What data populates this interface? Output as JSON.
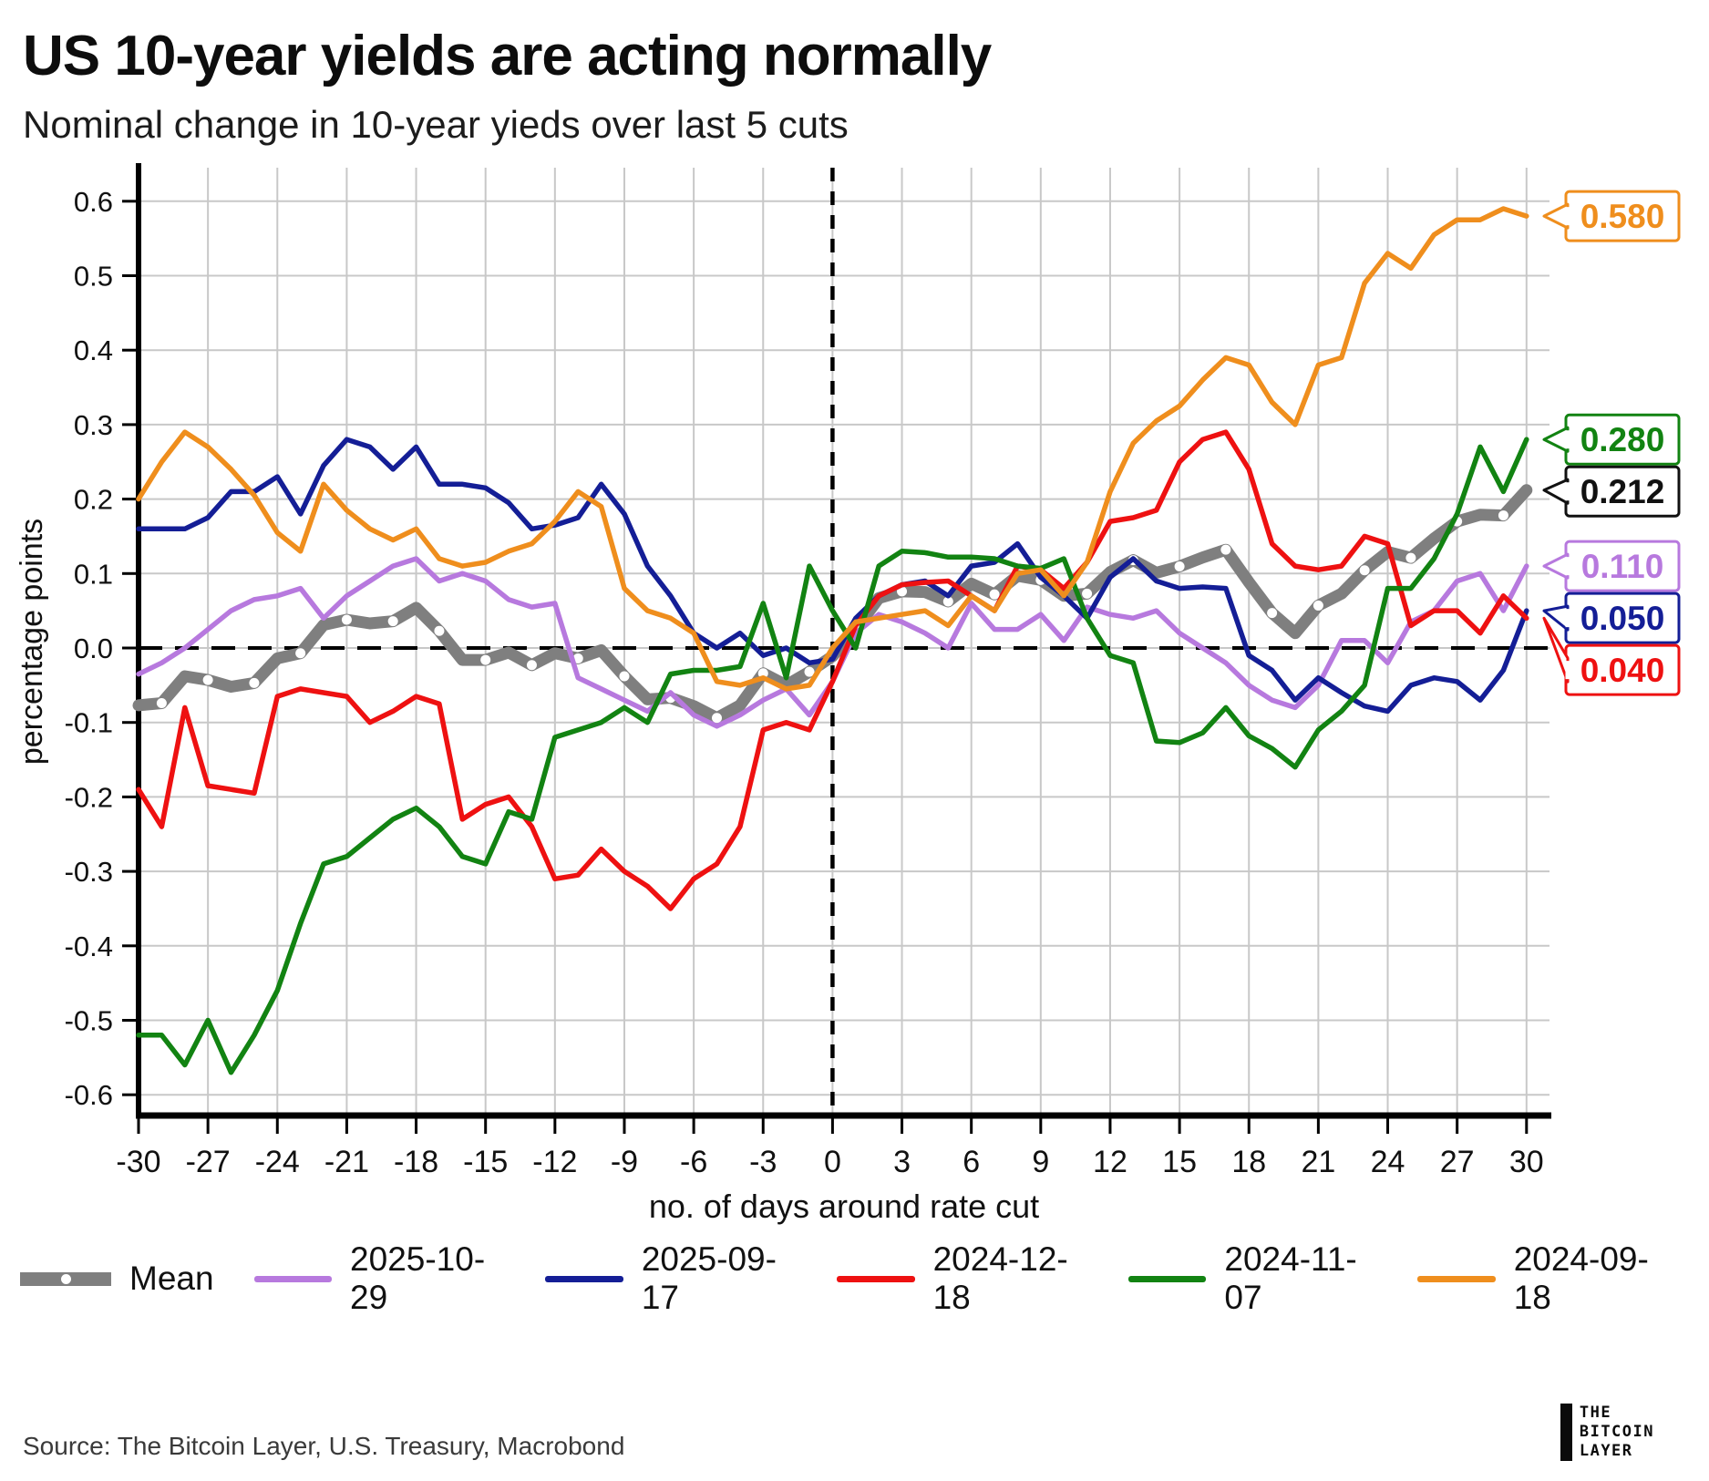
{
  "header": {
    "title": "US 10-year yields are acting normally",
    "subtitle": "Nominal change in 10-year yieds over last 5 cuts"
  },
  "chart_data": {
    "type": "line",
    "xlabel": "no. of days around rate cut",
    "ylabel": "percentage points",
    "x_range": [
      -30,
      30
    ],
    "xticks": [
      -30,
      -27,
      -24,
      -21,
      -18,
      -15,
      -12,
      -9,
      -6,
      -3,
      0,
      3,
      6,
      9,
      12,
      15,
      18,
      21,
      24,
      27,
      30
    ],
    "yticks": [
      0.6,
      0.5,
      0.4,
      0.3,
      0.2,
      0.1,
      0.0,
      -0.1,
      -0.2,
      -0.3,
      -0.4,
      -0.5,
      -0.6
    ],
    "ytick_labels": [
      "0.6",
      "0.5",
      "0.4",
      "0.3",
      "0.2",
      "0.1",
      "0.0",
      "-0.1",
      "-0.2",
      "-0.3",
      "-0.4",
      "-0.5",
      "-0.6"
    ],
    "ylim": [
      -0.66,
      0.645
    ],
    "grid": true,
    "zero_lines": "dashed horizontal at 0.0 and dashed vertical at day 0",
    "legend_position": "bottom",
    "grid_color": "#c8c8c8",
    "axis_color": "#000000",
    "mean_series": {
      "name": "Mean",
      "color": "#7f7f7f",
      "style": "thick-gray-with-white-dots",
      "derived": "average of the 5 dated series at each day",
      "end_label": "0.212",
      "end_label_color": "#111111"
    },
    "series": [
      {
        "name": "2025-10-29",
        "color": "#b779de",
        "end_label": "0.110",
        "values": [
          -0.035,
          -0.02,
          0.0,
          0.025,
          0.05,
          0.065,
          0.07,
          0.08,
          0.04,
          0.07,
          0.09,
          0.11,
          0.12,
          0.09,
          0.1,
          0.09,
          0.065,
          0.055,
          0.06,
          -0.04,
          -0.055,
          -0.07,
          -0.085,
          -0.06,
          -0.09,
          -0.105,
          -0.09,
          -0.07,
          -0.055,
          -0.09,
          -0.045,
          0.02,
          0.045,
          0.035,
          0.02,
          0.0,
          0.06,
          0.025,
          0.025,
          0.045,
          0.01,
          0.055,
          0.045,
          0.04,
          0.05,
          0.02,
          0.0,
          -0.02,
          -0.05,
          -0.07,
          -0.08,
          -0.05,
          0.01,
          0.01,
          -0.02,
          0.035,
          0.05,
          0.09,
          0.1,
          0.05,
          0.11
        ]
      },
      {
        "name": "2025-09-17",
        "color": "#141e96",
        "end_label": "0.050",
        "values": [
          0.16,
          0.16,
          0.16,
          0.175,
          0.21,
          0.21,
          0.23,
          0.18,
          0.245,
          0.28,
          0.27,
          0.24,
          0.27,
          0.22,
          0.22,
          0.215,
          0.195,
          0.16,
          0.165,
          0.175,
          0.22,
          0.18,
          0.11,
          0.07,
          0.02,
          0.0,
          0.02,
          -0.01,
          0.0,
          -0.02,
          -0.015,
          0.04,
          0.07,
          0.085,
          0.09,
          0.07,
          0.11,
          0.115,
          0.14,
          0.095,
          0.07,
          0.04,
          0.095,
          0.12,
          0.09,
          0.08,
          0.082,
          0.08,
          -0.01,
          -0.03,
          -0.07,
          -0.04,
          -0.06,
          -0.078,
          -0.085,
          -0.05,
          -0.04,
          -0.045,
          -0.07,
          -0.03,
          0.05
        ]
      },
      {
        "name": "2024-12-18",
        "color": "#ee1111",
        "end_label": "0.040",
        "values": [
          -0.19,
          -0.24,
          -0.08,
          -0.185,
          -0.19,
          -0.195,
          -0.065,
          -0.055,
          -0.06,
          -0.065,
          -0.1,
          -0.085,
          -0.065,
          -0.075,
          -0.23,
          -0.21,
          -0.2,
          -0.24,
          -0.31,
          -0.305,
          -0.27,
          -0.3,
          -0.32,
          -0.35,
          -0.31,
          -0.29,
          -0.24,
          -0.11,
          -0.1,
          -0.11,
          -0.045,
          0.03,
          0.07,
          0.085,
          0.088,
          0.09,
          0.07,
          0.05,
          0.11,
          0.105,
          0.08,
          0.115,
          0.17,
          0.175,
          0.185,
          0.25,
          0.28,
          0.29,
          0.24,
          0.14,
          0.11,
          0.105,
          0.11,
          0.15,
          0.14,
          0.03,
          0.05,
          0.05,
          0.02,
          0.07,
          0.04
        ]
      },
      {
        "name": "2024-11-07",
        "color": "#128312",
        "end_label": "0.280",
        "values": [
          -0.52,
          -0.52,
          -0.56,
          -0.5,
          -0.57,
          -0.52,
          -0.46,
          -0.37,
          -0.29,
          -0.28,
          -0.255,
          -0.23,
          -0.215,
          -0.24,
          -0.28,
          -0.29,
          -0.22,
          -0.23,
          -0.12,
          -0.11,
          -0.1,
          -0.08,
          -0.1,
          -0.035,
          -0.03,
          -0.03,
          -0.025,
          0.06,
          -0.04,
          0.11,
          0.05,
          0.0,
          0.11,
          0.13,
          0.128,
          0.122,
          0.122,
          0.12,
          0.11,
          0.107,
          0.12,
          0.04,
          -0.01,
          -0.02,
          -0.125,
          -0.127,
          -0.114,
          -0.08,
          -0.118,
          -0.135,
          -0.16,
          -0.11,
          -0.085,
          -0.05,
          0.08,
          0.08,
          0.12,
          0.18,
          0.27,
          0.21,
          0.28
        ]
      },
      {
        "name": "2024-09-18",
        "color": "#ef8e1d",
        "end_label": "0.580",
        "values": [
          0.2,
          0.25,
          0.29,
          0.27,
          0.24,
          0.205,
          0.155,
          0.13,
          0.22,
          0.185,
          0.16,
          0.145,
          0.16,
          0.12,
          0.11,
          0.115,
          0.13,
          0.14,
          0.17,
          0.21,
          0.19,
          0.08,
          0.05,
          0.04,
          0.02,
          -0.045,
          -0.05,
          -0.04,
          -0.055,
          -0.05,
          0.0,
          0.035,
          0.04,
          0.045,
          0.05,
          0.03,
          0.07,
          0.05,
          0.1,
          0.105,
          0.07,
          0.115,
          0.21,
          0.275,
          0.305,
          0.325,
          0.36,
          0.39,
          0.38,
          0.33,
          0.3,
          0.38,
          0.39,
          0.49,
          0.53,
          0.51,
          0.555,
          0.575,
          0.575,
          0.59,
          0.58
        ]
      }
    ],
    "legend": [
      "Mean",
      "2025-10-29",
      "2025-09-17",
      "2024-12-18",
      "2024-11-07",
      "2024-09-18"
    ]
  },
  "footer": {
    "source": "Source: The Bitcoin Layer, U.S. Treasury, Macrobond",
    "logo_lines": [
      "THE",
      "BITCOIN",
      "LAYER"
    ]
  }
}
